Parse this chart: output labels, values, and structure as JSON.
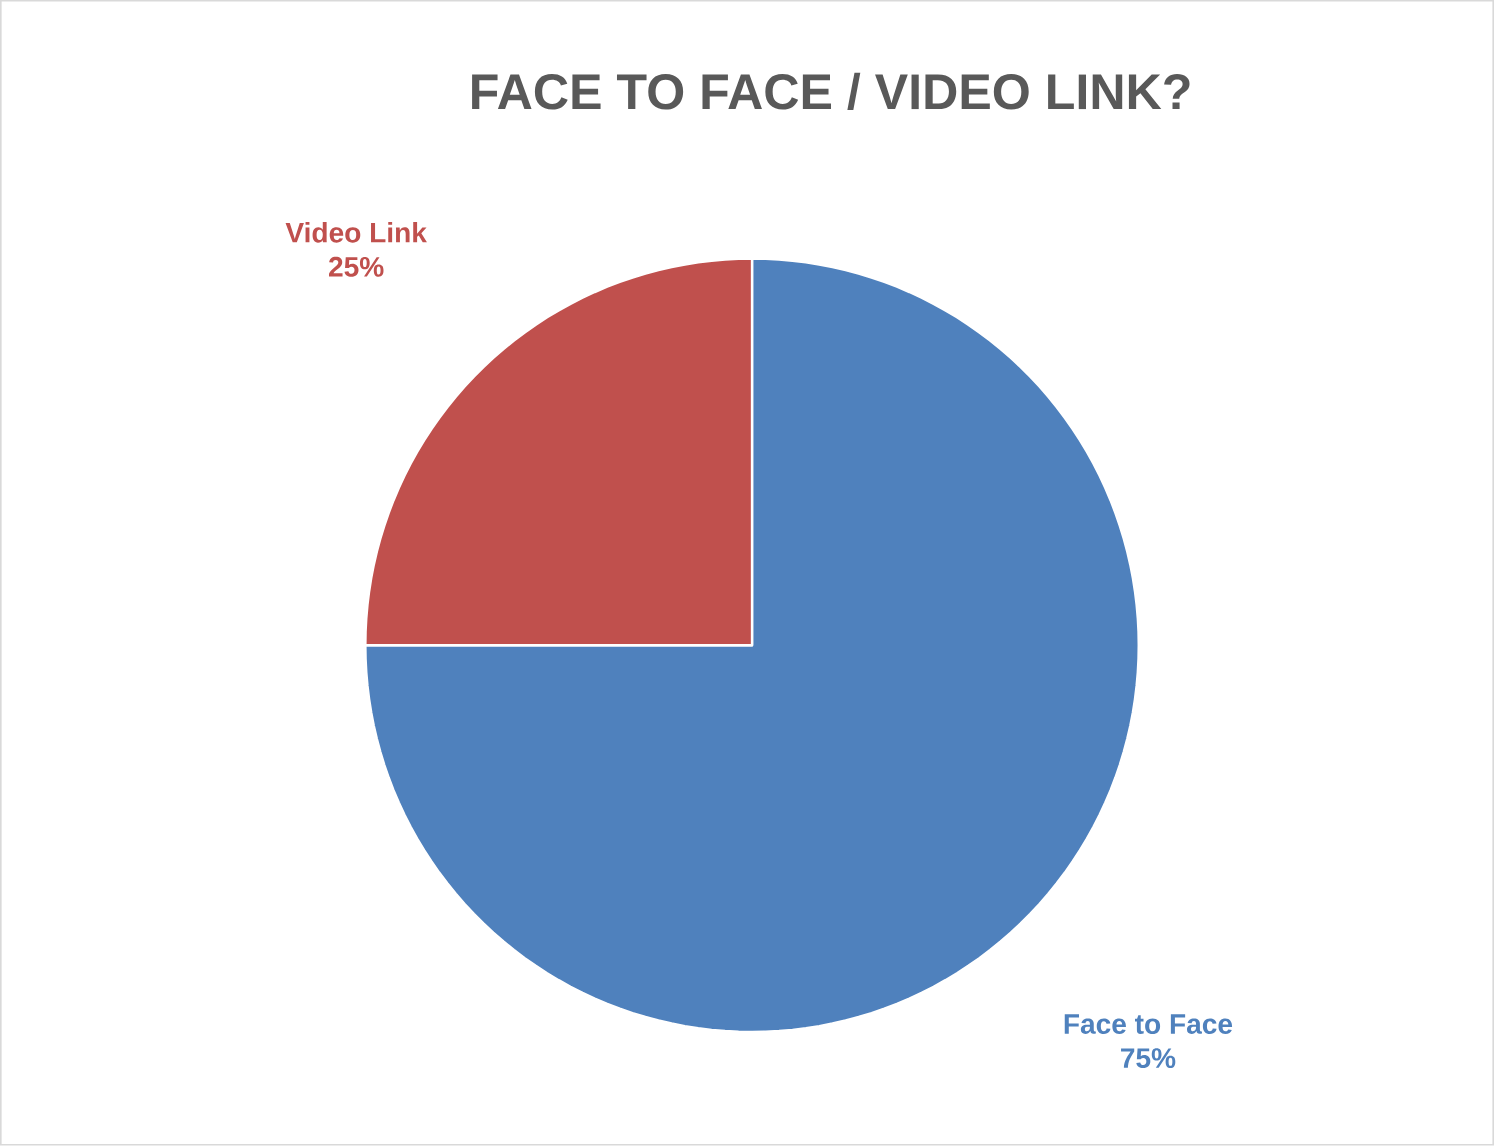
{
  "chart_data": {
    "type": "pie",
    "title": "FACE TO FACE / VIDEO LINK?",
    "categories": [
      "Face to Face",
      "Video Link"
    ],
    "values": [
      75,
      25
    ],
    "value_labels": [
      "75%",
      "25%"
    ],
    "colors": [
      "#4f81bd",
      "#c0504d"
    ]
  }
}
